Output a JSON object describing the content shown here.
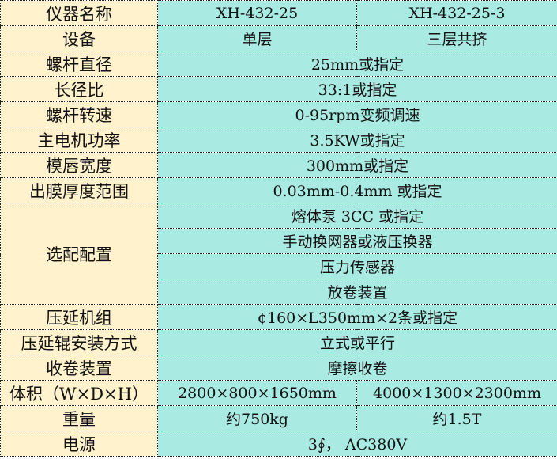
{
  "rows": {
    "model": {
      "label": "仪器名称",
      "a": "XH-432-25",
      "b": "XH-432-25-3"
    },
    "equipment": {
      "label": "设备",
      "a": "单层",
      "b": "三层共挤"
    },
    "screw_diameter": {
      "label": "螺杆直径",
      "value": "25mm或指定"
    },
    "ld_ratio": {
      "label": "长径比",
      "value": "33:1或指定"
    },
    "screw_speed": {
      "label": "螺杆转速",
      "value": "0-95rpm变频调速"
    },
    "main_motor": {
      "label": "主电机功率",
      "value": "3.5KW或指定"
    },
    "die_width": {
      "label": "模唇宽度",
      "value": "300mm或指定"
    },
    "film_thickness": {
      "label": "出膜厚度范围",
      "value": "0.03mm-0.4mm 或指定"
    },
    "options": {
      "label": "选配配置",
      "items": [
        "熔体泵 3CC 或指定",
        "手动换网器或液压换器",
        "压力传感器",
        "放卷装置"
      ]
    },
    "calender": {
      "label": "压延机组",
      "value": "¢160×L350mm×2条或指定"
    },
    "roller_mount": {
      "label": "压延辊安装方式",
      "value": "立式或平行"
    },
    "winder": {
      "label": "收卷装置",
      "value": "摩擦收卷"
    },
    "volume": {
      "label": "体积（W×D×H）",
      "a": "2800×800×1650mm",
      "b": "4000×1300×2300mm"
    },
    "weight": {
      "label": "重量",
      "a": "约750kg",
      "b": "约1.5T"
    },
    "power": {
      "label": "电源",
      "value": "3∮， AC380V"
    }
  }
}
